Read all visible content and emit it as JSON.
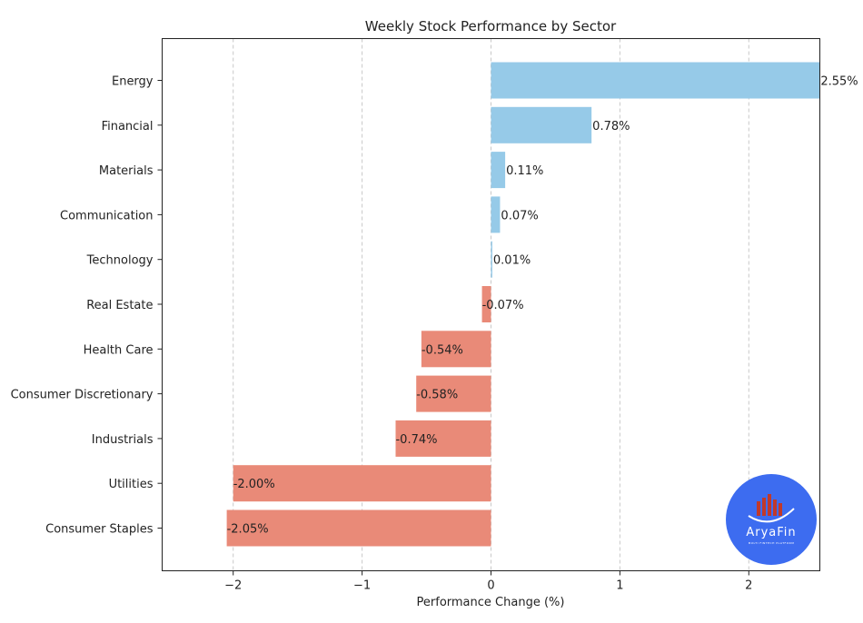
{
  "chart_data": {
    "type": "bar",
    "orientation": "horizontal",
    "title": "Weekly Stock Performance by Sector",
    "xlabel": "Performance Change (%)",
    "ylabel": "",
    "xlim": [
      -2.55,
      2.55
    ],
    "xticks": [
      -2,
      -1,
      0,
      1,
      2
    ],
    "xtick_labels": [
      "−2",
      "−1",
      "0",
      "1",
      "2"
    ],
    "grid": "vertical dashed",
    "categories": [
      "Energy",
      "Financial",
      "Materials",
      "Communication",
      "Technology",
      "Real Estate",
      "Health Care",
      "Consumer Discretionary",
      "Industrials",
      "Utilities",
      "Consumer Staples"
    ],
    "values": [
      2.55,
      0.78,
      0.11,
      0.07,
      0.01,
      -0.07,
      -0.54,
      -0.58,
      -0.74,
      -2.0,
      -2.05
    ],
    "value_labels": [
      "2.55%",
      "0.78%",
      "0.11%",
      "0.07%",
      "0.01%",
      "-0.07%",
      "-0.54%",
      "-0.58%",
      "-0.74%",
      "-2.00%",
      "-2.05%"
    ],
    "colors": {
      "positive": "#96cae8",
      "negative": "#e98a78"
    }
  },
  "logo": {
    "name": "AryaFin",
    "tagline": "MULTI FINTECH PLATFORM",
    "color": "#3d6cf0"
  }
}
